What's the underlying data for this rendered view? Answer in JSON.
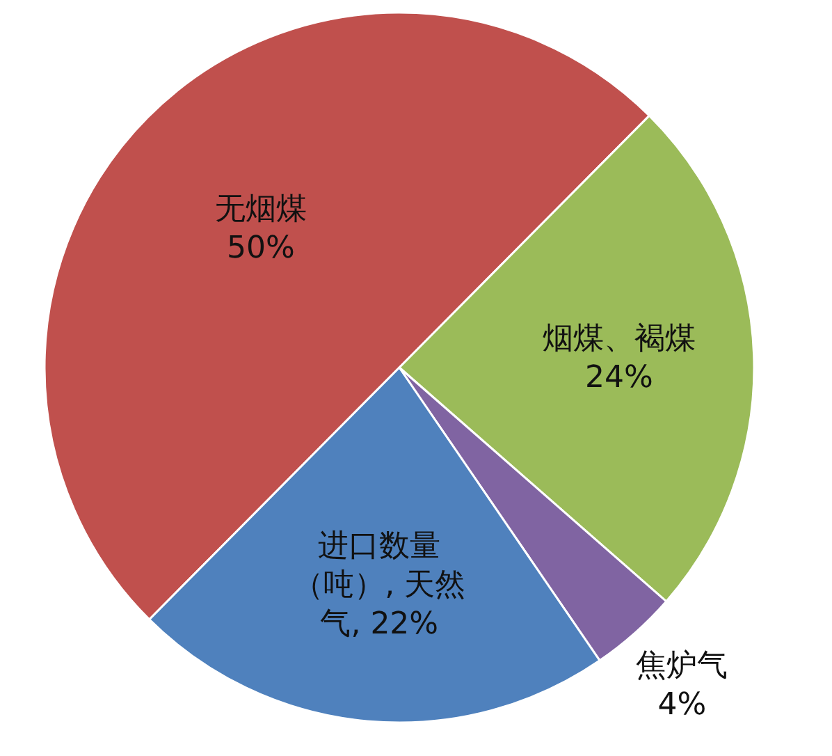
{
  "chart_data": {
    "type": "pie",
    "categories": [
      "无烟煤",
      "烟煤、褐煤",
      "焦炉气",
      "进口数量（吨）, 天然气"
    ],
    "values": [
      50,
      24,
      4,
      22
    ],
    "colors": [
      "#c0504d",
      "#9bbb59",
      "#8064a2",
      "#4f81bd"
    ],
    "value_labels": [
      "50%",
      "24%",
      "4%",
      "22%"
    ]
  }
}
